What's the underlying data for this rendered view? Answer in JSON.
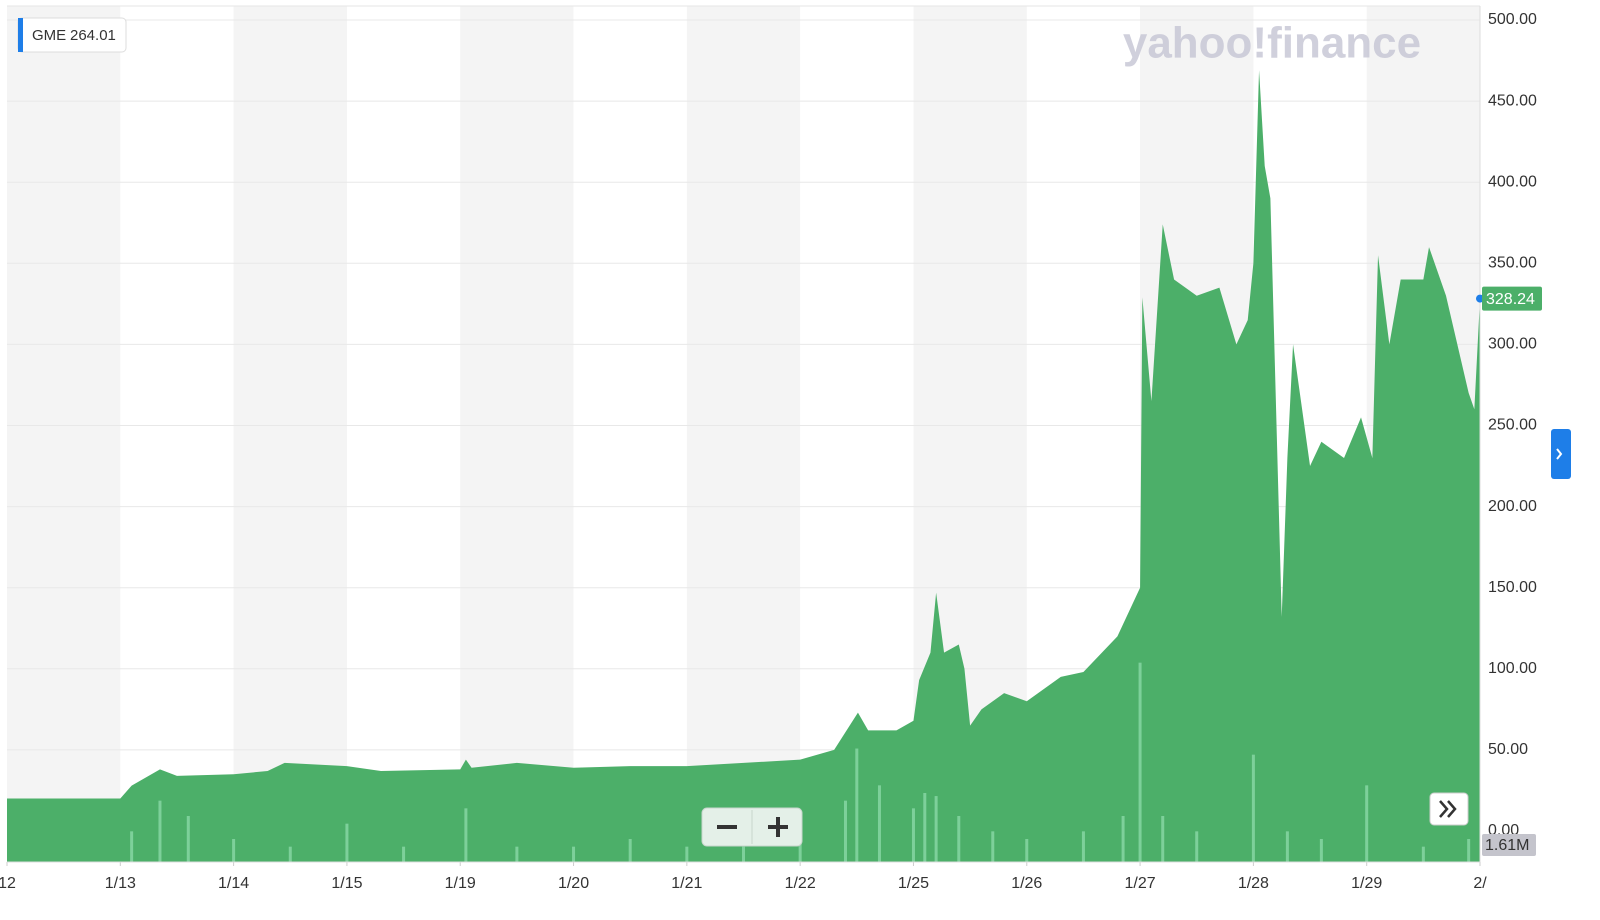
{
  "chart_data": {
    "type": "area",
    "legend_value": 264.01,
    "last_price": 328.24,
    "last_volume": "1.61M",
    "logo": "yahoo!finance",
    "series": [
      {
        "name": "GME",
        "color": "#4caf69",
        "x": [
          0,
          1.0,
          1.1,
          1.35,
          1.5,
          2.0,
          2.3,
          2.45,
          3.0,
          3.3,
          4.0,
          4.05,
          4.1,
          4.5,
          5.0,
          5.5,
          6.0,
          6.5,
          7.0,
          7.3,
          7.51,
          7.6,
          7.85,
          8.0,
          8.05,
          8.15,
          8.2,
          8.27,
          8.4,
          8.45,
          8.5,
          8.6,
          8.8,
          9.0,
          9.3,
          9.5,
          9.8,
          10.0,
          10.02,
          10.1,
          10.2,
          10.3,
          10.5,
          10.7,
          10.85,
          10.95,
          11.0,
          11.05,
          11.1,
          11.15,
          11.25,
          11.3,
          11.35,
          11.45,
          11.5,
          11.6,
          11.8,
          11.95,
          12.05,
          12.1,
          12.2,
          12.3,
          12.5,
          12.55,
          12.7,
          12.9,
          12.95,
          13.0
        ],
        "values": [
          20,
          20,
          28,
          38,
          34,
          35,
          37,
          42,
          40,
          37,
          38,
          44,
          39,
          42,
          39,
          40,
          40,
          42,
          44,
          50,
          73,
          62,
          62,
          68,
          93,
          110,
          147,
          110,
          115,
          100,
          65,
          75,
          85,
          80,
          95,
          98,
          120,
          150,
          329,
          265,
          374,
          340,
          330,
          335,
          300,
          315,
          350,
          469,
          410,
          390,
          132,
          230,
          300,
          250,
          225,
          240,
          230,
          255,
          230,
          355,
          300,
          340,
          340,
          360,
          330,
          270,
          260,
          328
        ]
      }
    ],
    "volume": {
      "color": "#86d6a3",
      "x": [
        1.1,
        1.35,
        1.6,
        2.0,
        2.5,
        3.0,
        3.5,
        4.05,
        4.5,
        5.0,
        5.5,
        6.0,
        6.5,
        7.0,
        7.4,
        7.5,
        7.7,
        8.0,
        8.1,
        8.2,
        8.4,
        8.7,
        9.0,
        9.5,
        9.85,
        10.0,
        10.2,
        10.5,
        11.0,
        11.3,
        11.6,
        12.0,
        12.5,
        12.9
      ],
      "values": [
        2,
        4,
        3,
        1.5,
        1,
        2.5,
        1,
        3.5,
        1,
        1,
        1.5,
        1,
        1,
        1.5,
        4,
        7.4,
        5,
        3.5,
        4.5,
        4.3,
        3,
        2,
        1.5,
        2,
        3,
        13,
        3,
        2,
        7,
        2,
        1.5,
        5,
        1,
        1.5
      ],
      "vlim": [
        0,
        15
      ]
    },
    "xlim": [
      0,
      13
    ],
    "xticks": [
      {
        "value": 0,
        "label": "12"
      },
      {
        "value": 1,
        "label": "1/13"
      },
      {
        "value": 2,
        "label": "1/14"
      },
      {
        "value": 3,
        "label": "1/15"
      },
      {
        "value": 4,
        "label": "1/19"
      },
      {
        "value": 5,
        "label": "1/20"
      },
      {
        "value": 6,
        "label": "1/21"
      },
      {
        "value": 7,
        "label": "1/22"
      },
      {
        "value": 8,
        "label": "1/25"
      },
      {
        "value": 9,
        "label": "1/26"
      },
      {
        "value": 10,
        "label": "1/27"
      },
      {
        "value": 11,
        "label": "1/28"
      },
      {
        "value": 12,
        "label": "1/29"
      },
      {
        "value": 13,
        "label": "2/"
      }
    ],
    "ylim": [
      0,
      500
    ],
    "yticks": [
      {
        "value": 0,
        "label": "0.00"
      },
      {
        "value": 50,
        "label": "50.00"
      },
      {
        "value": 100,
        "label": "100.00"
      },
      {
        "value": 150,
        "label": "150.00"
      },
      {
        "value": 200,
        "label": "200.00"
      },
      {
        "value": 250,
        "label": "250.00"
      },
      {
        "value": 300,
        "label": "300.00"
      },
      {
        "value": 350,
        "label": "350.00"
      },
      {
        "value": 400,
        "label": "400.00"
      },
      {
        "value": 450,
        "label": "450.00"
      },
      {
        "value": 500,
        "label": "500.00"
      }
    ],
    "grid": true
  }
}
